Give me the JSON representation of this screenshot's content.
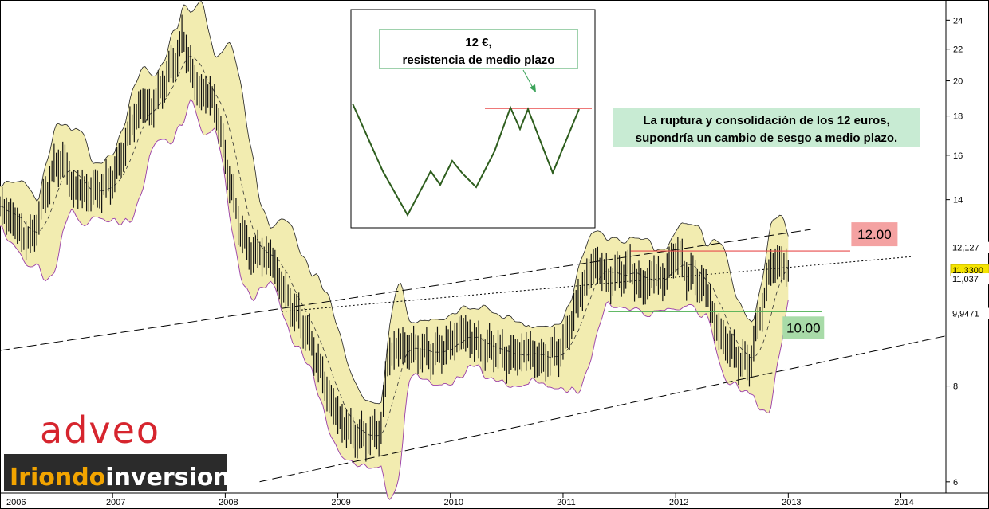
{
  "chart_data": {
    "type": "line",
    "title": "",
    "xlabel": "",
    "ylabel": "",
    "scale": "log",
    "xlim": [
      2006.0,
      2014.4
    ],
    "ylim": [
      5.8,
      25.5
    ],
    "x_ticks": [
      "2006",
      "2007",
      "2008",
      "2009",
      "2010",
      "2011",
      "2012",
      "2013",
      "2014"
    ],
    "y_ticks": [
      {
        "value": 6,
        "label": "6"
      },
      {
        "value": 8,
        "label": "8"
      },
      {
        "value": 14,
        "label": "14"
      },
      {
        "value": 16,
        "label": "16"
      },
      {
        "value": 18,
        "label": "18"
      },
      {
        "value": 20,
        "label": "20"
      },
      {
        "value": 22,
        "label": "22"
      },
      {
        "value": 24,
        "label": "24"
      }
    ],
    "price_tags": [
      {
        "value": 12.127,
        "label": "12,127",
        "color": "#ffffff"
      },
      {
        "value": 11.33,
        "label": "11,3300",
        "color": "#f5e400"
      },
      {
        "value": 11.037,
        "label": "11,037",
        "color": "#ffffff"
      },
      {
        "value": 9.9471,
        "label": "9,9471",
        "color": "#ffffff"
      }
    ],
    "series": [
      {
        "name": "",
        "points": [
          [
            2006.0,
            13.6
          ],
          [
            2006.1,
            13.3
          ],
          [
            2006.2,
            12.6
          ],
          [
            2006.28,
            12.4
          ],
          [
            2006.35,
            13.4
          ],
          [
            2006.45,
            15.0
          ],
          [
            2006.55,
            15.9
          ],
          [
            2006.65,
            14.5
          ],
          [
            2006.8,
            14.3
          ],
          [
            2006.95,
            14.6
          ],
          [
            2007.05,
            15.4
          ],
          [
            2007.15,
            17.2
          ],
          [
            2007.25,
            18.6
          ],
          [
            2007.35,
            18.4
          ],
          [
            2007.45,
            19.8
          ],
          [
            2007.55,
            21.2
          ],
          [
            2007.62,
            22.6
          ],
          [
            2007.68,
            21.6
          ],
          [
            2007.72,
            19.8
          ],
          [
            2007.8,
            19.3
          ],
          [
            2007.9,
            18.9
          ],
          [
            2008.0,
            15.9
          ],
          [
            2008.1,
            13.4
          ],
          [
            2008.2,
            12.0
          ],
          [
            2008.3,
            11.9
          ],
          [
            2008.4,
            11.8
          ],
          [
            2008.5,
            10.8
          ],
          [
            2008.6,
            10.1
          ],
          [
            2008.7,
            9.6
          ],
          [
            2008.8,
            8.8
          ],
          [
            2008.9,
            7.9
          ],
          [
            2009.0,
            7.3
          ],
          [
            2009.1,
            7.0
          ],
          [
            2009.2,
            6.85
          ],
          [
            2009.3,
            6.9
          ],
          [
            2009.38,
            7.0
          ],
          [
            2009.45,
            8.8
          ],
          [
            2009.55,
            9.0
          ],
          [
            2009.7,
            8.9
          ],
          [
            2009.85,
            8.8
          ],
          [
            2010.0,
            9.1
          ],
          [
            2010.1,
            9.4
          ],
          [
            2010.2,
            9.2
          ],
          [
            2010.3,
            8.9
          ],
          [
            2010.4,
            9.0
          ],
          [
            2010.5,
            8.7
          ],
          [
            2010.6,
            8.8
          ],
          [
            2010.7,
            8.9
          ],
          [
            2010.8,
            8.6
          ],
          [
            2010.9,
            8.8
          ],
          [
            2011.0,
            9.0
          ],
          [
            2011.1,
            10.0
          ],
          [
            2011.2,
            11.0
          ],
          [
            2011.3,
            11.6
          ],
          [
            2011.4,
            11.0
          ],
          [
            2011.5,
            11.2
          ],
          [
            2011.6,
            11.4
          ],
          [
            2011.7,
            10.7
          ],
          [
            2011.8,
            11.2
          ],
          [
            2011.9,
            11.0
          ],
          [
            2012.0,
            12.0
          ],
          [
            2012.1,
            11.2
          ],
          [
            2012.2,
            11.0
          ],
          [
            2012.3,
            10.5
          ],
          [
            2012.35,
            9.6
          ],
          [
            2012.45,
            9.1
          ],
          [
            2012.55,
            8.7
          ],
          [
            2012.65,
            8.5
          ],
          [
            2012.75,
            9.9
          ],
          [
            2012.85,
            11.5
          ],
          [
            2012.92,
            11.6
          ],
          [
            2013.0,
            11.3
          ]
        ]
      }
    ],
    "levels": [
      {
        "value": 12.0,
        "label": "12.00",
        "color": "#e84c4c",
        "box": "#f4a2a2"
      },
      {
        "value": 10.0,
        "label": "10.00",
        "color": "#4caf50",
        "box": "#a8dba8"
      }
    ]
  },
  "inset": {
    "note_line1": "12 €,",
    "note_line2": "resistencia de medio plazo"
  },
  "annotation": {
    "line1": "La ruptura y consolidación de los 12 euros,",
    "line2": "supondría un cambio de sesgo a medio plazo."
  },
  "logos": {
    "company": "adveo",
    "brand_left": "Iriondo",
    "brand_right": "inversiones"
  },
  "colors": {
    "band_fill": "#f2ecb0",
    "band_edge": "#9a3da8",
    "price": "#111111",
    "inset_line": "#2e5e1e",
    "company_logo": "#d6252e",
    "brand_bg": "#2b2b2b",
    "brand_left": "#f2a400"
  }
}
